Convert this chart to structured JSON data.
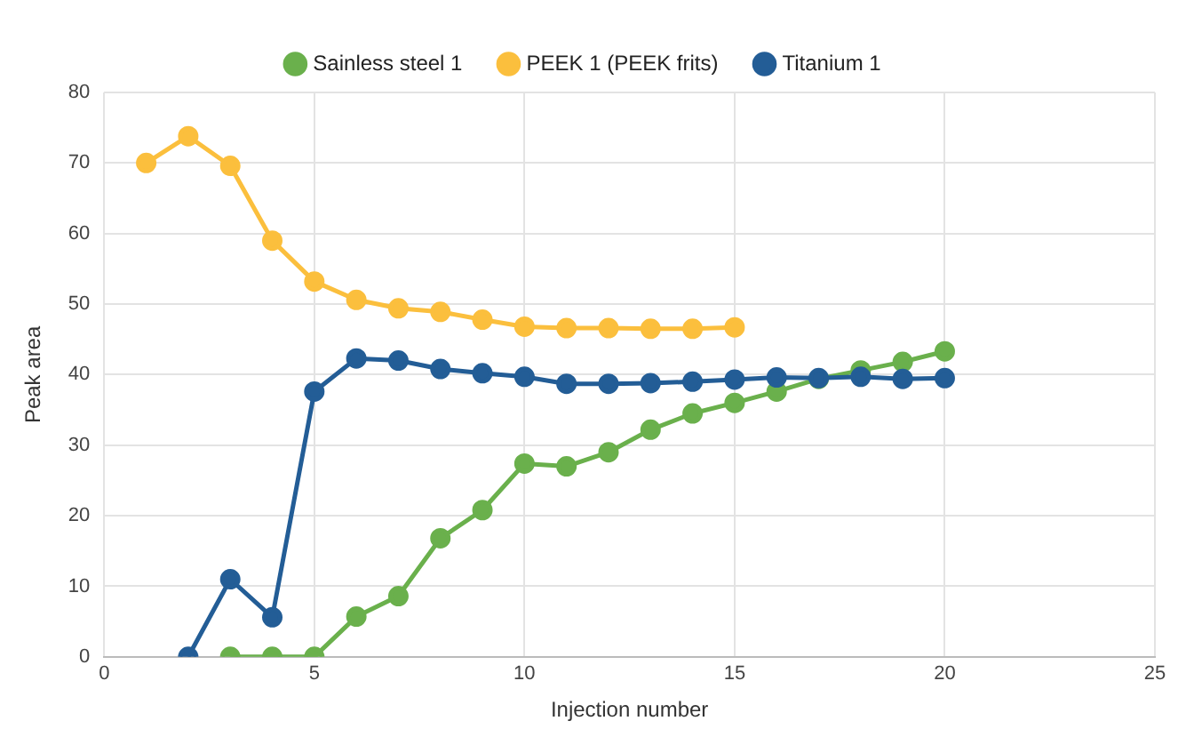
{
  "chart_data": {
    "type": "line",
    "xlabel": "Injection number",
    "ylabel": "Peak area",
    "xlim": [
      0,
      25
    ],
    "xticks": [
      0,
      5,
      10,
      15,
      20,
      25
    ],
    "ylim": [
      0,
      80
    ],
    "yticks": [
      0,
      10,
      20,
      30,
      40,
      50,
      60,
      70,
      80
    ],
    "grid": true,
    "legend": "top",
    "marker": "circle",
    "line_style": "solid",
    "series": [
      {
        "name": "Sainless steel 1",
        "color": "#6ab04c",
        "x": [
          3,
          4,
          5,
          6,
          7,
          8,
          9,
          10,
          11,
          12,
          13,
          14,
          15,
          16,
          17,
          18,
          19,
          20
        ],
        "values": [
          0,
          0,
          0,
          5.7,
          8.6,
          16.8,
          20.8,
          27.4,
          27,
          29,
          32.2,
          34.5,
          36,
          37.6,
          39.4,
          40.6,
          41.8,
          43.3
        ]
      },
      {
        "name": "PEEK 1 (PEEK frits)",
        "color": "#fbbf3d",
        "x": [
          1,
          2,
          3,
          4,
          5,
          6,
          7,
          8,
          9,
          10,
          11,
          12,
          13,
          14,
          15
        ],
        "values": [
          70,
          73.8,
          69.6,
          59,
          53.2,
          50.6,
          49.4,
          48.9,
          47.8,
          46.8,
          46.6,
          46.6,
          46.5,
          46.5,
          46.7
        ]
      },
      {
        "name": "Titanium 1",
        "color": "#235d96",
        "x": [
          2,
          3,
          4,
          5,
          6,
          7,
          8,
          9,
          10,
          11,
          12,
          13,
          14,
          15,
          16,
          17,
          18,
          19,
          20
        ],
        "values": [
          0,
          11,
          5.6,
          37.6,
          42.3,
          42,
          40.8,
          40.2,
          39.7,
          38.7,
          38.7,
          38.8,
          39,
          39.3,
          39.6,
          39.5,
          39.7,
          39.4,
          39.5
        ]
      }
    ]
  }
}
